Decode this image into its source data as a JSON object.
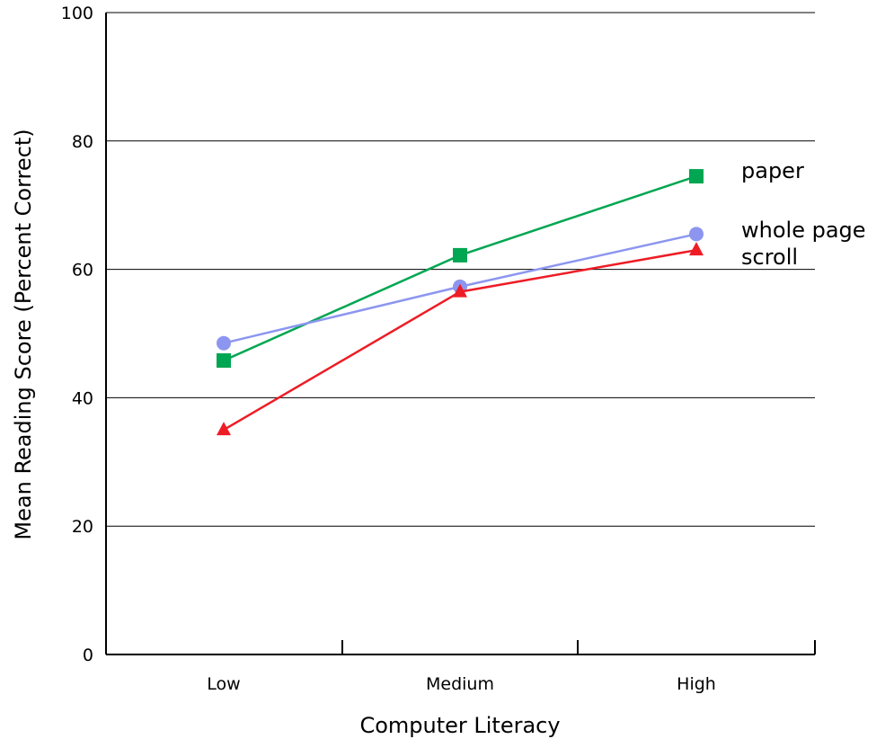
{
  "chart_data": {
    "type": "line",
    "xlabel": "Computer Literacy",
    "ylabel": "Mean Reading Score (Percent Correct)",
    "categories": [
      "Low",
      "Medium",
      "High"
    ],
    "ylim": [
      0,
      100
    ],
    "yticks": [
      0,
      20,
      40,
      60,
      80,
      100
    ],
    "grid": true,
    "legend": "right",
    "series": [
      {
        "name": "paper",
        "values": [
          45.8,
          62.2,
          74.5
        ],
        "color": "#00a651",
        "marker": "square"
      },
      {
        "name": "whole page",
        "values": [
          48.5,
          57.3,
          65.5
        ],
        "color": "#8c96f0",
        "marker": "circle"
      },
      {
        "name": "scroll",
        "values": [
          35.0,
          56.5,
          63.0
        ],
        "color": "#ee1c25",
        "marker": "triangle"
      }
    ]
  }
}
